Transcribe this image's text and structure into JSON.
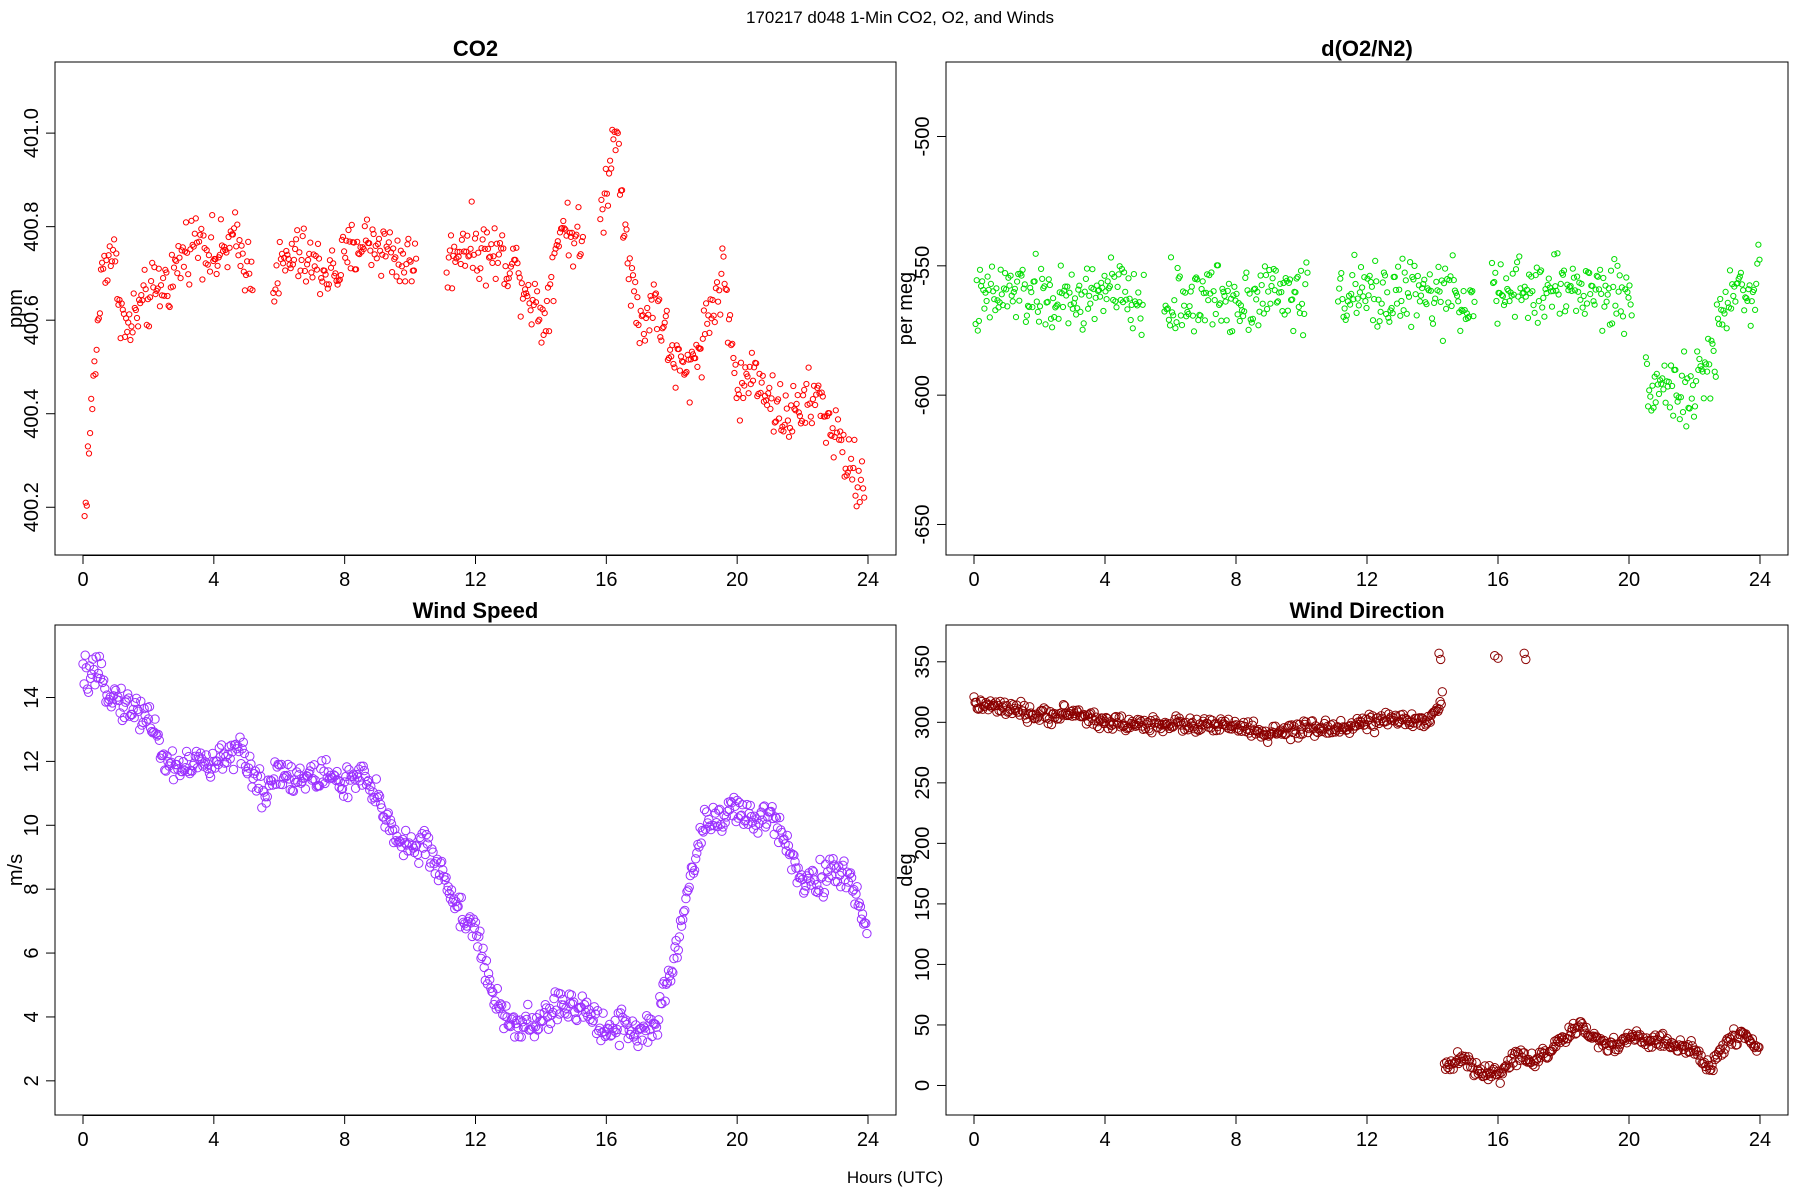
{
  "figure": {
    "title": "170217   d048   1-Min CO2, O2, and Winds",
    "xlabel": "Hours (UTC)"
  },
  "chart_data": [
    {
      "id": "co2",
      "type": "scatter",
      "title": "CO2",
      "xlabel": "",
      "ylabel": "ppm",
      "xlim": [
        0,
        24
      ],
      "ylim": [
        400.13,
        401.12
      ],
      "xticks": [
        "0",
        "4",
        "8",
        "12",
        "16",
        "20",
        "24"
      ],
      "yticks": [
        "400.2",
        "400.4",
        "400.6",
        "400.8",
        "401.0"
      ],
      "marker_color": "#ff0000",
      "grid": false,
      "gaps": [
        [
          5.2,
          5.8
        ],
        [
          10.2,
          11.1
        ],
        [
          15.3,
          15.8
        ]
      ],
      "anchors": [
        [
          0.05,
          400.17
        ],
        [
          0.15,
          400.3
        ],
        [
          0.6,
          400.72
        ],
        [
          0.9,
          400.75
        ],
        [
          1.3,
          400.57
        ],
        [
          1.7,
          400.62
        ],
        [
          2.2,
          400.66
        ],
        [
          2.7,
          400.69
        ],
        [
          3.2,
          400.76
        ],
        [
          3.6,
          400.78
        ],
        [
          4.1,
          400.73
        ],
        [
          4.6,
          400.77
        ],
        [
          5.2,
          400.7
        ],
        [
          5.8,
          400.69
        ],
        [
          6.5,
          400.74
        ],
        [
          7.2,
          400.71
        ],
        [
          7.7,
          400.7
        ],
        [
          8.5,
          400.77
        ],
        [
          9.1,
          400.76
        ],
        [
          9.7,
          400.73
        ],
        [
          10.2,
          400.72
        ],
        [
          11.1,
          400.71
        ],
        [
          11.6,
          400.77
        ],
        [
          12.1,
          400.75
        ],
        [
          12.7,
          400.74
        ],
        [
          13.2,
          400.72
        ],
        [
          13.7,
          400.65
        ],
        [
          14.1,
          400.6
        ],
        [
          14.6,
          400.81
        ],
        [
          15.0,
          400.78
        ],
        [
          15.3,
          400.76
        ],
        [
          15.8,
          400.8
        ],
        [
          16.3,
          401.02
        ],
        [
          16.6,
          400.78
        ],
        [
          17.0,
          400.58
        ],
        [
          17.5,
          400.65
        ],
        [
          18.0,
          400.52
        ],
        [
          18.5,
          400.48
        ],
        [
          19.0,
          400.58
        ],
        [
          19.6,
          400.7
        ],
        [
          20.0,
          400.44
        ],
        [
          20.6,
          400.5
        ],
        [
          21.2,
          400.4
        ],
        [
          21.9,
          400.4
        ],
        [
          22.4,
          400.44
        ],
        [
          22.9,
          400.37
        ],
        [
          23.5,
          400.28
        ],
        [
          23.9,
          400.24
        ]
      ],
      "noise": 0.05
    },
    {
      "id": "o2",
      "type": "scatter",
      "title": "d(O2/N2)",
      "xlabel": "",
      "ylabel": "per meg",
      "xlim": [
        0,
        24
      ],
      "ylim": [
        -656,
        -477
      ],
      "xticks": [
        "0",
        "4",
        "8",
        "12",
        "16",
        "20",
        "24"
      ],
      "yticks": [
        "-650",
        "-600",
        "-550",
        "-500"
      ],
      "marker_color": "#00dd00",
      "grid": false,
      "gaps": [
        [
          5.2,
          5.8
        ],
        [
          10.2,
          11.1
        ],
        [
          15.3,
          15.8
        ],
        [
          20.1,
          20.5
        ]
      ],
      "anchors": [
        [
          0.05,
          -565
        ],
        [
          1.0,
          -560
        ],
        [
          2.0,
          -562
        ],
        [
          3.0,
          -565
        ],
        [
          4.0,
          -558
        ],
        [
          5.0,
          -565
        ],
        [
          5.8,
          -565
        ],
        [
          7.0,
          -562
        ],
        [
          8.0,
          -563
        ],
        [
          9.0,
          -560
        ],
        [
          10.0,
          -562
        ],
        [
          11.1,
          -560
        ],
        [
          12.0,
          -562
        ],
        [
          13.0,
          -560
        ],
        [
          14.0,
          -562
        ],
        [
          15.2,
          -562
        ],
        [
          15.8,
          -562
        ],
        [
          17.0,
          -560
        ],
        [
          18.0,
          -558
        ],
        [
          19.0,
          -560
        ],
        [
          20.0,
          -562
        ],
        [
          20.5,
          -592
        ],
        [
          21.2,
          -597
        ],
        [
          21.9,
          -600
        ],
        [
          22.5,
          -588
        ],
        [
          23.0,
          -560
        ],
        [
          24.0,
          -557
        ]
      ],
      "noise": 10
    },
    {
      "id": "wind-speed",
      "type": "scatter",
      "title": "Wind Speed",
      "xlabel": "",
      "ylabel": "m/s",
      "xlim": [
        0,
        24
      ],
      "ylim": [
        1.4,
        15.8
      ],
      "xticks": [
        "0",
        "4",
        "8",
        "12",
        "16",
        "20",
        "24"
      ],
      "yticks": [
        "2",
        "4",
        "6",
        "8",
        "10",
        "12",
        "14"
      ],
      "marker_color": "#9b30ff",
      "grid": false,
      "gaps": [],
      "anchors": [
        [
          0.0,
          14.7
        ],
        [
          0.5,
          14.6
        ],
        [
          1.0,
          14.0
        ],
        [
          1.5,
          13.6
        ],
        [
          2.0,
          13.5
        ],
        [
          2.5,
          12.0
        ],
        [
          3.0,
          11.8
        ],
        [
          3.5,
          12.0
        ],
        [
          4.0,
          11.8
        ],
        [
          4.5,
          12.4
        ],
        [
          5.0,
          12.0
        ],
        [
          5.5,
          11.0
        ],
        [
          6.0,
          11.8
        ],
        [
          6.5,
          11.4
        ],
        [
          7.0,
          11.5
        ],
        [
          7.5,
          11.6
        ],
        [
          8.0,
          11.3
        ],
        [
          8.5,
          11.5
        ],
        [
          9.0,
          10.8
        ],
        [
          9.5,
          9.8
        ],
        [
          10.0,
          9.3
        ],
        [
          10.5,
          9.3
        ],
        [
          11.0,
          8.5
        ],
        [
          11.5,
          7.3
        ],
        [
          12.0,
          6.8
        ],
        [
          12.5,
          4.6
        ],
        [
          13.0,
          3.9
        ],
        [
          13.5,
          3.7
        ],
        [
          14.0,
          3.8
        ],
        [
          14.5,
          4.4
        ],
        [
          15.0,
          4.2
        ],
        [
          15.5,
          4.2
        ],
        [
          16.0,
          3.6
        ],
        [
          16.5,
          3.8
        ],
        [
          17.0,
          3.5
        ],
        [
          17.5,
          3.7
        ],
        [
          18.0,
          5.4
        ],
        [
          18.5,
          8.0
        ],
        [
          19.0,
          10.2
        ],
        [
          19.5,
          10.2
        ],
        [
          20.0,
          10.5
        ],
        [
          20.5,
          10.0
        ],
        [
          21.0,
          10.4
        ],
        [
          21.5,
          9.6
        ],
        [
          22.0,
          8.2
        ],
        [
          22.5,
          8.4
        ],
        [
          23.0,
          8.5
        ],
        [
          23.5,
          8.2
        ],
        [
          24.0,
          6.8
        ]
      ],
      "noise": 0.4
    },
    {
      "id": "wind-direction",
      "type": "scatter",
      "title": "Wind Direction",
      "xlabel": "",
      "ylabel": "deg",
      "xlim": [
        0,
        24
      ],
      "ylim": [
        -12,
        368
      ],
      "xticks": [
        "0",
        "4",
        "8",
        "12",
        "16",
        "20",
        "24"
      ],
      "yticks": [
        "0",
        "50",
        "100",
        "150",
        "200",
        "250",
        "300",
        "350"
      ],
      "marker_color": "#8b0000",
      "grid": false,
      "gaps": [
        [
          14.3,
          14.35
        ]
      ],
      "anchors": [
        [
          0.0,
          315
        ],
        [
          1.0,
          311
        ],
        [
          2.0,
          305
        ],
        [
          3.0,
          308
        ],
        [
          4.0,
          300
        ],
        [
          5.0,
          298
        ],
        [
          6.0,
          299
        ],
        [
          7.0,
          297
        ],
        [
          8.0,
          297
        ],
        [
          9.0,
          290
        ],
        [
          10.0,
          294
        ],
        [
          11.0,
          295
        ],
        [
          12.0,
          300
        ],
        [
          13.0,
          302
        ],
        [
          13.5,
          300
        ],
        [
          14.0,
          306
        ],
        [
          14.3,
          320
        ],
        [
          14.35,
          15
        ],
        [
          15.0,
          22
        ],
        [
          15.5,
          10
        ],
        [
          16.0,
          8
        ],
        [
          16.5,
          25
        ],
        [
          17.0,
          20
        ],
        [
          17.5,
          28
        ],
        [
          18.0,
          38
        ],
        [
          18.5,
          48
        ],
        [
          19.0,
          38
        ],
        [
          19.5,
          32
        ],
        [
          20.0,
          40
        ],
        [
          20.5,
          37
        ],
        [
          21.0,
          37
        ],
        [
          21.5,
          32
        ],
        [
          22.0,
          28
        ],
        [
          22.5,
          14
        ],
        [
          23.0,
          37
        ],
        [
          23.5,
          44
        ],
        [
          24.0,
          28
        ]
      ],
      "noise": 5,
      "extra_points": [
        [
          14.2,
          357
        ],
        [
          14.25,
          352
        ],
        [
          15.9,
          355
        ],
        [
          16.0,
          353
        ],
        [
          16.8,
          357
        ],
        [
          16.85,
          352
        ]
      ]
    }
  ]
}
